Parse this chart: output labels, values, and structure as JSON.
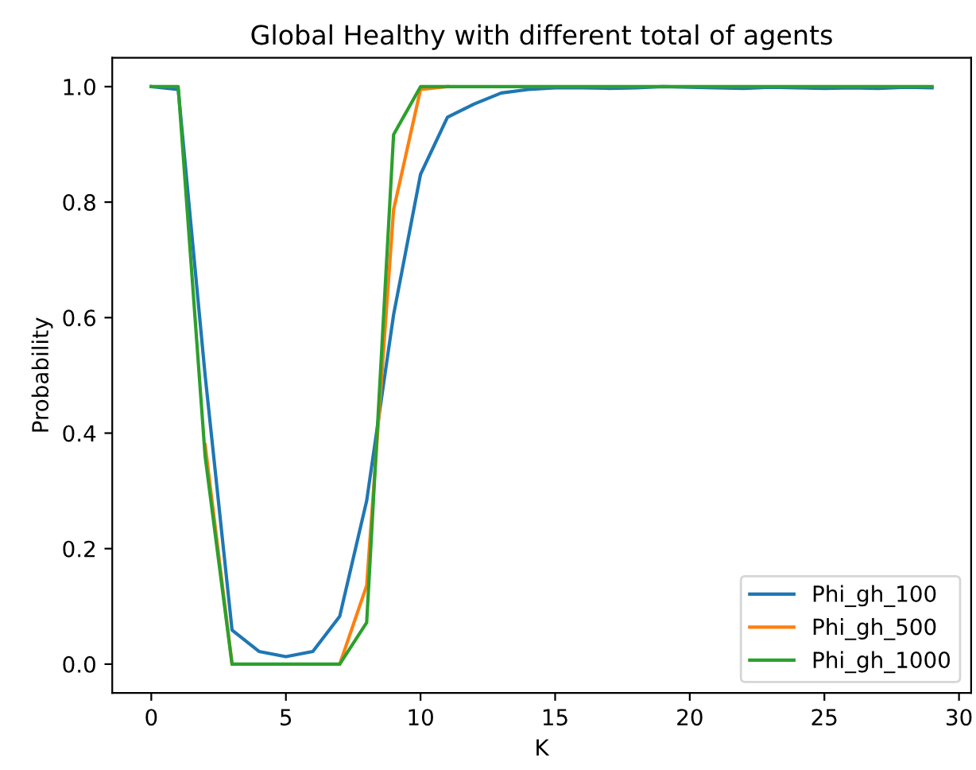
{
  "chart_data": {
    "type": "line",
    "title": "Global Healthy with different total of agents",
    "xlabel": "K",
    "ylabel": "Probability",
    "x": [
      0,
      1,
      2,
      3,
      4,
      5,
      6,
      7,
      8,
      9,
      10,
      11,
      12,
      13,
      14,
      15,
      16,
      17,
      18,
      19,
      20,
      21,
      22,
      23,
      24,
      25,
      26,
      27,
      28,
      29
    ],
    "series": [
      {
        "name": "Phi_gh_100",
        "color": "#1f77b4",
        "values": [
          1.0,
          0.995,
          0.5,
          0.059,
          0.022,
          0.013,
          0.022,
          0.083,
          0.283,
          0.605,
          0.848,
          0.947,
          0.97,
          0.989,
          0.995,
          0.998,
          0.998,
          0.997,
          0.998,
          1.0,
          0.999,
          0.998,
          0.997,
          0.999,
          0.998,
          0.997,
          0.998,
          0.997,
          0.999,
          0.998
        ]
      },
      {
        "name": "Phi_gh_500",
        "color": "#ff7f0e",
        "values": [
          null,
          null,
          0.38,
          0.0,
          null,
          null,
          null,
          0.0,
          0.136,
          0.787,
          0.995,
          1.0,
          null,
          null,
          null,
          null,
          null,
          null,
          null,
          null,
          null,
          null,
          null,
          null,
          null,
          null,
          null,
          null,
          null,
          null
        ]
      },
      {
        "name": "Phi_gh_1000",
        "color": "#2ca02c",
        "values": [
          1.0,
          1.0,
          0.36,
          0.0,
          0.0,
          0.0,
          0.0,
          0.0,
          0.072,
          0.917,
          1.0,
          1.0,
          1.0,
          1.0,
          1.0,
          1.0,
          1.0,
          1.0,
          1.0,
          1.0,
          1.0,
          1.0,
          1.0,
          1.0,
          1.0,
          1.0,
          1.0,
          1.0,
          1.0,
          1.0
        ]
      }
    ],
    "xlim": [
      -1.45,
      30.45
    ],
    "ylim": [
      -0.05,
      1.05
    ],
    "xticks": [
      0,
      5,
      10,
      15,
      20,
      25,
      30
    ],
    "yticks": [
      {
        "value": 0,
        "label": "0.0"
      },
      {
        "value": 0.2,
        "label": "0.2"
      },
      {
        "value": 0.4,
        "label": "0.4"
      },
      {
        "value": 0.6,
        "label": "0.6"
      },
      {
        "value": 0.8,
        "label": "0.8"
      },
      {
        "value": 1.0,
        "label": "1.0"
      }
    ],
    "legend": "lower right",
    "grid": false
  }
}
